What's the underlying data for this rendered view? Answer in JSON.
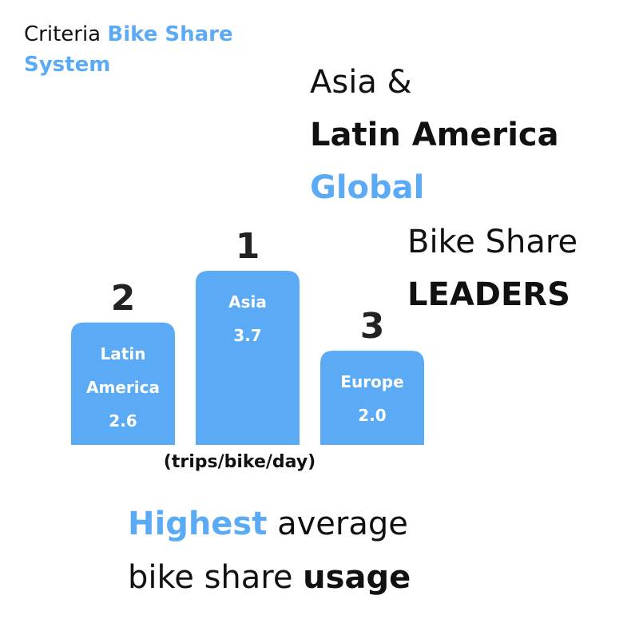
{
  "criteria": {
    "prefix": "Criteria",
    "highlight_line1": "Bike Share",
    "highlight_line2": "System"
  },
  "headline": {
    "line1": "Asia &",
    "line2": "Latin America",
    "line3": "Global",
    "line4": "Bike Share",
    "line5": "LEADERS"
  },
  "chart_data": {
    "type": "bar",
    "categories": [
      "Latin America",
      "Asia",
      "Europe"
    ],
    "category_lines": [
      [
        "Latin",
        "America"
      ],
      [
        "Asia"
      ],
      [
        "Europe"
      ]
    ],
    "values": [
      2.6,
      3.7,
      2.0
    ],
    "ranks": [
      "2",
      "1",
      "3"
    ],
    "value_labels": [
      "2.6",
      "3.7",
      "2.0"
    ],
    "unit_label": "(trips/bike/day)",
    "bar_color": "#5aaaf5"
  },
  "footer": {
    "highlight": "Highest",
    "line1_rest": " average",
    "line2_start": "bike share ",
    "line2_bold": "usage"
  }
}
